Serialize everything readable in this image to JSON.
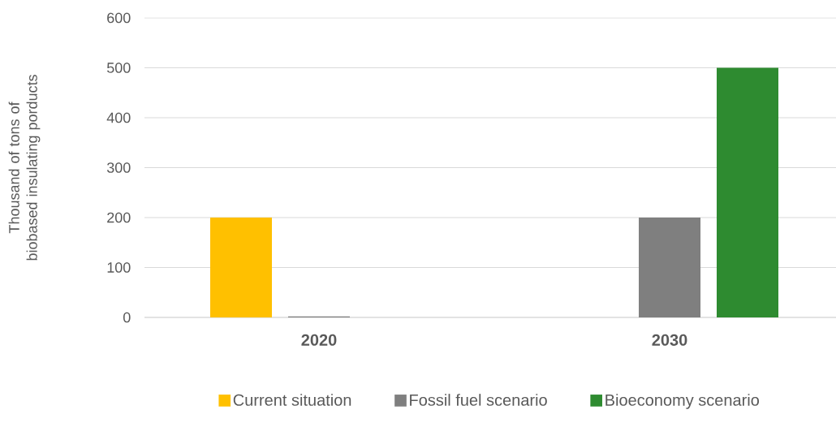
{
  "chart_data": {
    "type": "bar",
    "ylabel": "Thousand of tons of biobased insulating porducts",
    "categories": [
      "2020",
      "2030"
    ],
    "series": [
      {
        "name": "Current situation",
        "color": "#ffc000",
        "values": [
          200,
          null
        ]
      },
      {
        "name": "Fossil fuel scenario",
        "color": "#7f7f7f",
        "values": [
          2,
          200
        ]
      },
      {
        "name": "Bioeconomy scenario",
        "color": "#2e8b30",
        "values": [
          null,
          500
        ]
      }
    ],
    "ylim": [
      0,
      600
    ],
    "yticks": [
      0,
      100,
      200,
      300,
      400,
      500,
      600
    ],
    "grid": "y",
    "legend": "bottom"
  }
}
